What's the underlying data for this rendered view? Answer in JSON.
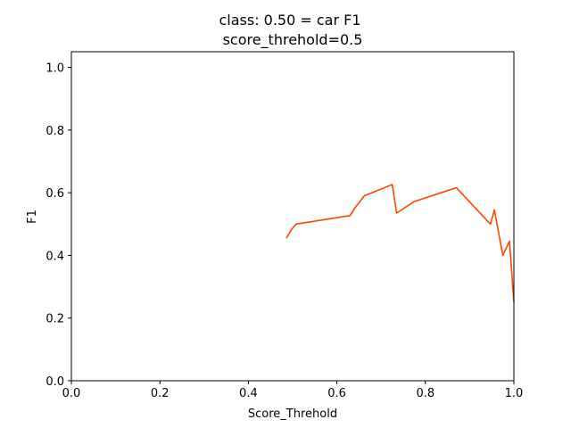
{
  "chart_data": {
    "type": "line",
    "title": "class: 0.50 = car F1",
    "subtitle": "score_threhold=0.5",
    "xlabel": "Score_Threhold",
    "ylabel": "F1",
    "xlim": [
      0.0,
      1.0
    ],
    "ylim": [
      0.0,
      1.05
    ],
    "x_ticks": [
      "0.0",
      "0.2",
      "0.4",
      "0.6",
      "0.8",
      "1.0"
    ],
    "y_ticks": [
      "0.0",
      "0.2",
      "0.4",
      "0.6",
      "0.8",
      "1.0"
    ],
    "grid": false,
    "legend": "none",
    "series": [
      {
        "color": "#ff4500",
        "x": [
          0.486,
          0.497,
          0.508,
          0.63,
          0.64,
          0.662,
          0.725,
          0.735,
          0.775,
          0.87,
          0.947,
          0.956,
          0.975,
          0.99,
          1.0
        ],
        "y": [
          0.455,
          0.482,
          0.5,
          0.527,
          0.55,
          0.59,
          0.626,
          0.535,
          0.572,
          0.616,
          0.5,
          0.545,
          0.4,
          0.445,
          0.25
        ]
      }
    ]
  }
}
